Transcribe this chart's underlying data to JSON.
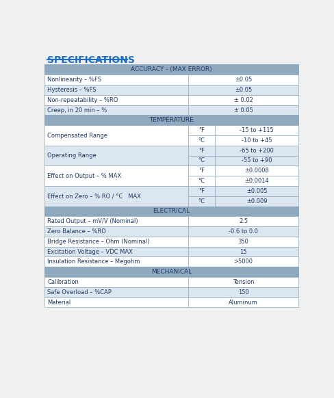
{
  "title": "SPECIFICATIONS",
  "header_color": "#8faabe",
  "row_color_light": "#dce6f1",
  "row_color_white": "#ffffff",
  "border_color": "#8faabe",
  "text_color": "#1f3864",
  "title_color": "#1f6dbf",
  "bg_color": "#f0f0f0",
  "sections": [
    {
      "type": "header",
      "label": "ACCURACY - (MAX ERROR)"
    },
    {
      "type": "row2col",
      "col1": "Nonlinearity – %FS",
      "col2": "±0.05",
      "shade": false
    },
    {
      "type": "row2col",
      "col1": "Hysteresis – %FS",
      "col2": "±0.05",
      "shade": true
    },
    {
      "type": "row2col",
      "col1": "Non-repeatability – %RO",
      "col2": "± 0.02",
      "shade": false
    },
    {
      "type": "row2col",
      "col1": "Creep, in 20 min – %",
      "col2": "± 0.05",
      "shade": true
    },
    {
      "type": "header",
      "label": "TEMPERATURE"
    },
    {
      "type": "row3col_merged",
      "col1": "Compensated Range",
      "subrows": [
        {
          "unit": "°F",
          "value": "-15 to +115"
        },
        {
          "unit": "°C",
          "value": "-10 to +45"
        }
      ],
      "shade": false
    },
    {
      "type": "row3col_merged",
      "col1": "Operating Range",
      "subrows": [
        {
          "unit": "°F",
          "value": "-65 to +200"
        },
        {
          "unit": "°C",
          "value": "-55 to +90"
        }
      ],
      "shade": true
    },
    {
      "type": "row3col_merged",
      "col1": "Effect on Output – % MAX",
      "subrows": [
        {
          "unit": "°F",
          "value": "±0.0008"
        },
        {
          "unit": "°C",
          "value": "±0.0014"
        }
      ],
      "shade": false
    },
    {
      "type": "row3col_merged",
      "col1": "Effect on Zero – % RO / °C   MAX",
      "subrows": [
        {
          "unit": "°F",
          "value": "±0.005"
        },
        {
          "unit": "°C",
          "value": "±0.009"
        }
      ],
      "shade": true
    },
    {
      "type": "header",
      "label": "ELECTRICAL"
    },
    {
      "type": "row2col",
      "col1": "Rated Output – mV/V (Nominal)",
      "col2": "2.5",
      "shade": false
    },
    {
      "type": "row2col",
      "col1": "Zero Balance – %RO",
      "col2": "-0.6 to 0.0",
      "shade": true
    },
    {
      "type": "row2col",
      "col1": "Bridge Resistance – Ohm (Nominal)",
      "col2": "350",
      "shade": false
    },
    {
      "type": "row2col",
      "col1": "Excitation Voltage – VDC MAX",
      "col2": "15",
      "shade": true
    },
    {
      "type": "row2col",
      "col1": "Insulation Resistance – Megohm",
      "col2": ">5000",
      "shade": false
    },
    {
      "type": "header",
      "label": "MECHANICAL"
    },
    {
      "type": "row2col",
      "col1": "Calibration",
      "col2": "Tension",
      "shade": false
    },
    {
      "type": "row2col",
      "col1": "Safe Overload – %CAP",
      "col2": "150",
      "shade": true
    },
    {
      "type": "row2col",
      "col1": "Material",
      "col2": "Aluminum",
      "shade": false
    }
  ]
}
